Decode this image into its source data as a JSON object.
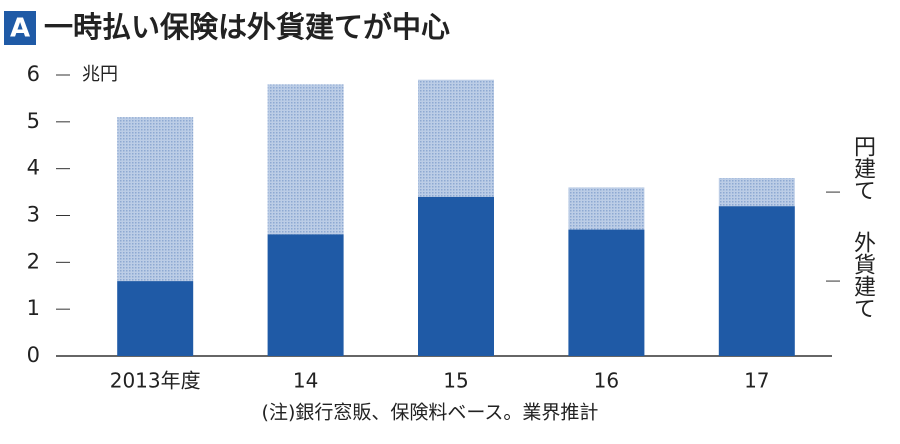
{
  "badge": "A",
  "chart_data": {
    "type": "stacked_bar",
    "title": "一時払い保険は外貨建てが中心",
    "unit_label": "兆円",
    "note": "(注)銀行窓販、保険料ベース。業界推計",
    "categories": [
      "2013年度",
      "14",
      "15",
      "16",
      "17"
    ],
    "series": [
      {
        "name": "外貨建て",
        "color": "#1f5aa6",
        "values": [
          1.6,
          2.6,
          3.4,
          2.7,
          3.2
        ]
      },
      {
        "name": "円建て",
        "color": "#a9c0e0",
        "values": [
          3.5,
          3.2,
          2.5,
          0.9,
          0.6
        ]
      }
    ],
    "ylim": [
      0,
      6
    ],
    "yticks": [
      0,
      1,
      2,
      3,
      4,
      5,
      6
    ],
    "grid": false
  }
}
